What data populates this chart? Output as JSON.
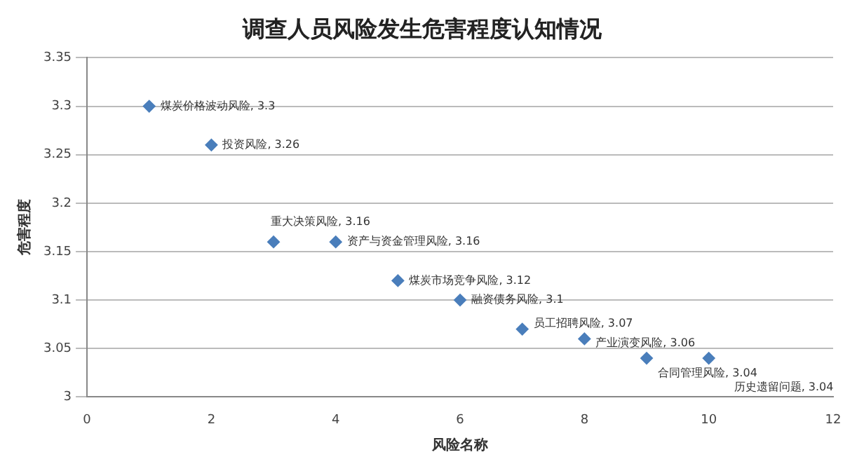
{
  "chart_data": {
    "type": "scatter",
    "title": "调查人员风险发生危害程度认知情况",
    "xlabel": "风险名称",
    "ylabel": "危害程度",
    "x": [
      1,
      2,
      3,
      4,
      5,
      6,
      7,
      8,
      9,
      10
    ],
    "values": [
      3.3,
      3.26,
      3.16,
      3.16,
      3.12,
      3.1,
      3.07,
      3.06,
      3.04,
      3.04
    ],
    "value_labels": [
      "煤炭价格波动风险, 3.3",
      "投资风险, 3.26",
      "重大决策风险, 3.16",
      "资产与资金管理风险, 3.16",
      "煤炭市场竞争风险, 3.12",
      "融资债务风险, 3.1",
      "员工招聘风险, 3.07",
      "产业演变风险, 3.06",
      "合同管理风险, 3.04",
      "历史遗留问题, 3.04"
    ],
    "color": "#4a7ebb",
    "marker": "diamond",
    "grid": "y",
    "legend": false,
    "xlim": [
      0,
      12
    ],
    "xticks": [
      0,
      2,
      4,
      6,
      8,
      10,
      12
    ],
    "ylim": [
      3,
      3.35
    ],
    "yticks": [
      3,
      3.05,
      3.1,
      3.15,
      3.2,
      3.25,
      3.3,
      3.35
    ]
  }
}
